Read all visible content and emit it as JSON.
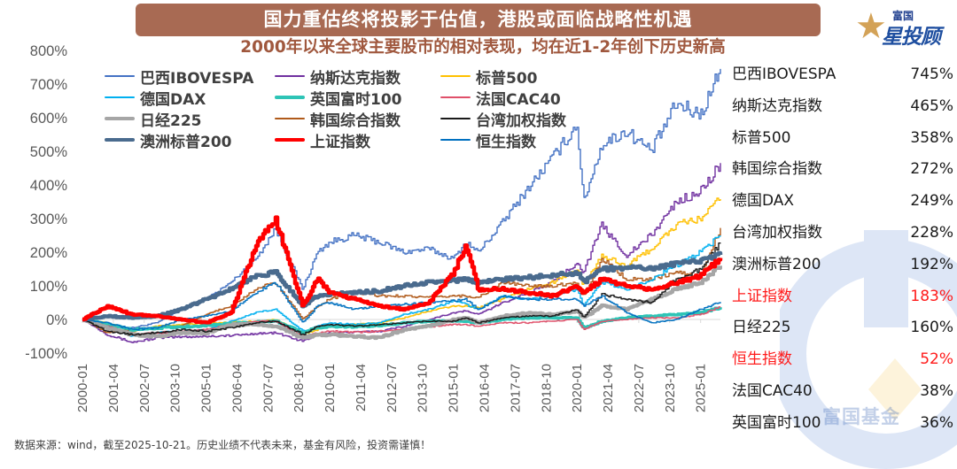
{
  "header": {
    "title": "国力重估终将投影于估值，港股或面临战略性机遇",
    "subtitle": "2000年以来全球主要股市的相对表现，均在近1-2年创下历史新高"
  },
  "logo": {
    "icon": "star-icon",
    "small_text": "富国",
    "big_text": "星投顾"
  },
  "watermark": {
    "text": "富国基金"
  },
  "footnote": "数据来源：wind，截至2025-10-21。历史业绩不代表未来，基金有风险，投资需谨慎！",
  "ranking": [
    {
      "name": "巴西IBOVESPA",
      "value": "745%",
      "highlight": false
    },
    {
      "name": "纳斯达克指数",
      "value": "465%",
      "highlight": false
    },
    {
      "name": "标普500",
      "value": "358%",
      "highlight": false
    },
    {
      "name": "韩国综合指数",
      "value": "272%",
      "highlight": false
    },
    {
      "name": "德国DAX",
      "value": "249%",
      "highlight": false
    },
    {
      "name": "台湾加权指数",
      "value": "228%",
      "highlight": false
    },
    {
      "name": "澳洲标普200",
      "value": "192%",
      "highlight": false
    },
    {
      "name": "上证指数",
      "value": "183%",
      "highlight": true
    },
    {
      "name": "日经225",
      "value": "160%",
      "highlight": false
    },
    {
      "name": "恒生指数",
      "value": "52%",
      "highlight": true
    },
    {
      "name": "法国CAC40",
      "value": "38%",
      "highlight": false
    },
    {
      "name": "英国富时100",
      "value": "36%",
      "highlight": false
    }
  ],
  "colors": {
    "title_bg": "#a86a53",
    "subtitle": "#a0583e",
    "highlight": "#ff1a1a"
  },
  "chart_data": {
    "type": "line",
    "title": "2000年以来全球主要股市的相对表现",
    "xlabel": "",
    "ylabel": "",
    "ylim": [
      -100,
      800
    ],
    "yticks": [
      "-100%",
      "0%",
      "100%",
      "200%",
      "300%",
      "400%",
      "500%",
      "600%",
      "700%",
      "800%"
    ],
    "ytick_values": [
      -100,
      0,
      100,
      200,
      300,
      400,
      500,
      600,
      700,
      800
    ],
    "xlim": [
      2000.0,
      2025.8
    ],
    "xticks": [
      "2000-01",
      "2001-04",
      "2002-07",
      "2003-10",
      "2005-01",
      "2006-04",
      "2007-07",
      "2008-10",
      "2010-01",
      "2011-04",
      "2012-07",
      "2013-10",
      "2015-01",
      "2016-04",
      "2017-07",
      "2018-10",
      "2020-01",
      "2021-04",
      "2022-07",
      "2023-10",
      "2025-01"
    ],
    "xtick_values": [
      2000.0,
      2001.25,
      2002.5,
      2003.75,
      2005.0,
      2006.25,
      2007.5,
      2008.75,
      2010.0,
      2011.25,
      2012.5,
      2013.75,
      2015.0,
      2016.25,
      2017.5,
      2018.75,
      2020.0,
      2021.25,
      2022.5,
      2023.75,
      2025.0
    ],
    "grid": false,
    "legend_position": "top-left",
    "x": [
      2000,
      2001,
      2002,
      2003,
      2004,
      2005,
      2006,
      2007,
      2007.8,
      2008.9,
      2009.5,
      2010,
      2011,
      2012,
      2013,
      2014,
      2015,
      2015.5,
      2016,
      2017,
      2018,
      2019,
      2020,
      2020.25,
      2021,
      2022,
      2023,
      2024,
      2025,
      2025.8
    ],
    "series": [
      {
        "name": "巴西IBOVESPA",
        "color": "#4472c4",
        "width": 1.4,
        "values": [
          0,
          -15,
          -25,
          -10,
          30,
          60,
          110,
          180,
          270,
          90,
          200,
          230,
          250,
          230,
          200,
          210,
          180,
          230,
          200,
          290,
          390,
          480,
          580,
          350,
          520,
          560,
          500,
          640,
          610,
          745
        ]
      },
      {
        "name": "纳斯达克指数",
        "color": "#7030a0",
        "width": 1.4,
        "values": [
          0,
          -45,
          -68,
          -55,
          -52,
          -50,
          -48,
          -42,
          -40,
          -65,
          -45,
          -40,
          -38,
          -35,
          -20,
          0,
          20,
          25,
          15,
          50,
          80,
          110,
          170,
          140,
          280,
          190,
          250,
          350,
          380,
          465
        ]
      },
      {
        "name": "标普500",
        "color": "#ffc000",
        "width": 1.4,
        "values": [
          0,
          -10,
          -35,
          -20,
          -15,
          -12,
          -8,
          -5,
          0,
          -45,
          -30,
          -20,
          -15,
          -10,
          5,
          25,
          40,
          40,
          35,
          60,
          90,
          110,
          150,
          100,
          190,
          160,
          210,
          280,
          300,
          358
        ]
      },
      {
        "name": "德国DAX",
        "color": "#00b0f0",
        "width": 1.4,
        "values": [
          0,
          -20,
          -50,
          -40,
          -35,
          -30,
          -5,
          20,
          30,
          -35,
          -20,
          -10,
          -15,
          -10,
          15,
          30,
          55,
          45,
          30,
          70,
          60,
          70,
          90,
          40,
          110,
          90,
          120,
          160,
          200,
          249
        ]
      },
      {
        "name": "英国富时100",
        "color": "#2ec4b6",
        "width": 3.5,
        "values": [
          0,
          -15,
          -30,
          -25,
          -22,
          -18,
          -12,
          -8,
          -5,
          -38,
          -25,
          -20,
          -22,
          -18,
          -10,
          -5,
          -5,
          -5,
          -10,
          0,
          5,
          5,
          5,
          -25,
          -5,
          5,
          10,
          15,
          20,
          36
        ]
      },
      {
        "name": "法国CAC40",
        "color": "#e0506a",
        "width": 1.4,
        "values": [
          0,
          -20,
          -45,
          -40,
          -35,
          -30,
          -15,
          -5,
          -5,
          -50,
          -40,
          -35,
          -38,
          -35,
          -28,
          -22,
          -15,
          -15,
          -20,
          -10,
          -10,
          -5,
          0,
          -30,
          -5,
          0,
          5,
          5,
          15,
          38
        ]
      },
      {
        "name": "日经225",
        "color": "#a6a6a6",
        "width": 4,
        "values": [
          0,
          -25,
          -45,
          -50,
          -40,
          -40,
          -15,
          -15,
          -20,
          -55,
          -45,
          -45,
          -50,
          -55,
          -30,
          -20,
          0,
          5,
          -10,
          10,
          20,
          15,
          25,
          5,
          40,
          30,
          60,
          90,
          110,
          160
        ]
      },
      {
        "name": "韩国综合指数",
        "color": "#b05a1a",
        "width": 1.4,
        "values": [
          0,
          -40,
          -30,
          -25,
          -20,
          15,
          40,
          90,
          110,
          0,
          40,
          60,
          80,
          70,
          70,
          65,
          70,
          70,
          65,
          110,
          100,
          100,
          110,
          70,
          180,
          120,
          120,
          140,
          130,
          272
        ]
      },
      {
        "name": "台湾加权指数",
        "color": "#1a1a1a",
        "width": 1.4,
        "values": [
          0,
          -35,
          -45,
          -40,
          -30,
          -35,
          -25,
          -10,
          -5,
          -45,
          -20,
          -15,
          -20,
          -15,
          -10,
          -5,
          -5,
          5,
          -10,
          5,
          10,
          10,
          30,
          5,
          75,
          60,
          50,
          120,
          150,
          228
        ]
      },
      {
        "name": "澳洲标普200",
        "color": "#4a6b8e",
        "width": 4.5,
        "values": [
          0,
          10,
          5,
          10,
          30,
          60,
          90,
          130,
          140,
          40,
          70,
          75,
          80,
          85,
          100,
          110,
          115,
          120,
          110,
          120,
          125,
          130,
          140,
          110,
          150,
          155,
          150,
          165,
          175,
          192
        ]
      },
      {
        "name": "上证指数",
        "color": "#ff0000",
        "width": 4.5,
        "values": [
          0,
          40,
          15,
          10,
          0,
          -10,
          20,
          220,
          300,
          40,
          120,
          80,
          60,
          40,
          30,
          50,
          140,
          220,
          90,
          90,
          80,
          70,
          100,
          80,
          120,
          100,
          90,
          110,
          130,
          183
        ]
      },
      {
        "name": "恒生指数",
        "color": "#0070c0",
        "width": 1.4,
        "values": [
          0,
          -10,
          -30,
          -25,
          0,
          10,
          25,
          80,
          110,
          -10,
          40,
          50,
          30,
          40,
          45,
          50,
          55,
          60,
          30,
          70,
          60,
          60,
          60,
          40,
          70,
          20,
          -10,
          0,
          30,
          52
        ]
      }
    ]
  }
}
